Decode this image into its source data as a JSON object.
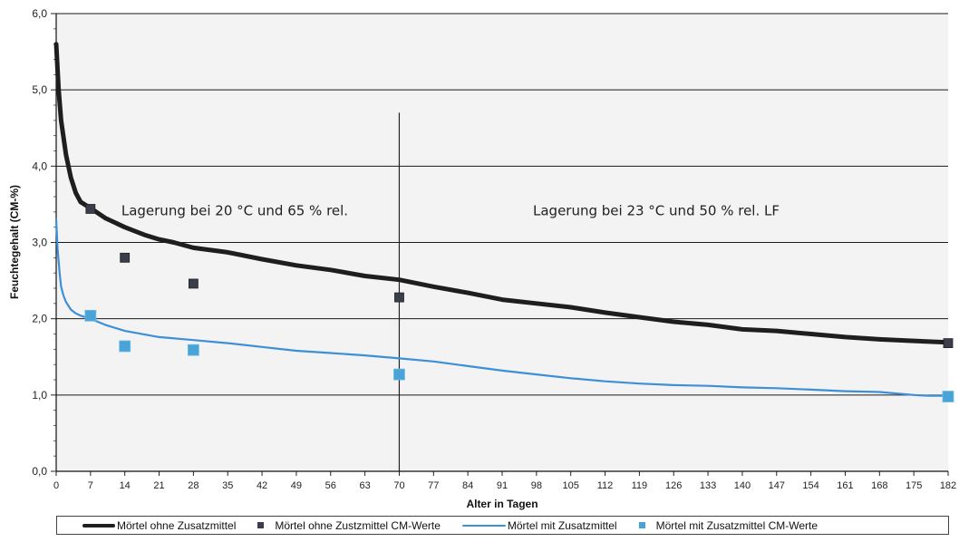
{
  "chart_data": {
    "type": "line",
    "xlabel": "Alter in Tagen",
    "ylabel": "Feuchtegehalt (CM-%)",
    "xlim": [
      0,
      182
    ],
    "ylim": [
      0,
      6
    ],
    "x_ticks": [
      "0",
      "7",
      "14",
      "21",
      "28",
      "35",
      "42",
      "49",
      "56",
      "63",
      "70",
      "77",
      "84",
      "91",
      "98",
      "105",
      "112",
      "119",
      "126",
      "133",
      "140",
      "147",
      "154",
      "161",
      "168",
      "175",
      "182"
    ],
    "y_ticks": [
      "0,0",
      "1,0",
      "2,0",
      "3,0",
      "4,0",
      "5,0",
      "6,0"
    ],
    "grid": "horizontal major gridlines",
    "legend_position": "bottom",
    "series": [
      {
        "name": "Mörtel ohne Zusatzmittel",
        "kind": "line",
        "color": "#1e1e1e",
        "x": [
          0,
          0.5,
          1,
          2,
          3,
          4,
          5,
          7,
          10,
          14,
          18,
          21,
          24,
          28,
          35,
          42,
          49,
          56,
          63,
          70,
          77,
          84,
          91,
          98,
          105,
          112,
          119,
          126,
          133,
          140,
          147,
          154,
          161,
          168,
          175,
          182
        ],
        "y": [
          5.6,
          5.0,
          4.6,
          4.15,
          3.85,
          3.65,
          3.53,
          3.45,
          3.32,
          3.2,
          3.1,
          3.04,
          3.0,
          2.93,
          2.87,
          2.78,
          2.7,
          2.64,
          2.56,
          2.51,
          2.42,
          2.34,
          2.25,
          2.2,
          2.15,
          2.08,
          2.02,
          1.96,
          1.92,
          1.86,
          1.84,
          1.8,
          1.76,
          1.73,
          1.71,
          1.69
        ]
      },
      {
        "name": "Mörtel ohne Zustzmittel CM-Werte",
        "kind": "scatter",
        "color": "#3a3d4a",
        "x": [
          7,
          14,
          28,
          70,
          182
        ],
        "y": [
          3.44,
          2.8,
          2.46,
          2.28,
          1.68
        ]
      },
      {
        "name": "Mörtel mit Zusatzmittel",
        "kind": "line",
        "color": "#3d8fd6",
        "x": [
          0,
          0.3,
          0.7,
          1,
          1.5,
          2,
          3,
          4,
          5,
          7,
          10,
          14,
          21,
          28,
          35,
          42,
          49,
          56,
          63,
          70,
          77,
          84,
          91,
          98,
          105,
          112,
          119,
          126,
          133,
          140,
          147,
          154,
          161,
          168,
          175,
          178,
          182
        ],
        "y": [
          3.3,
          2.9,
          2.6,
          2.42,
          2.3,
          2.22,
          2.12,
          2.07,
          2.04,
          2.0,
          1.92,
          1.84,
          1.76,
          1.72,
          1.68,
          1.63,
          1.58,
          1.55,
          1.52,
          1.48,
          1.44,
          1.38,
          1.32,
          1.27,
          1.22,
          1.18,
          1.15,
          1.13,
          1.12,
          1.1,
          1.09,
          1.07,
          1.05,
          1.04,
          1.0,
          0.99,
          0.99
        ]
      },
      {
        "name": "Mörtel mit Zusatzmittel CM-Werte",
        "kind": "scatter",
        "color": "#4aa3d6",
        "x": [
          7,
          14,
          28,
          70,
          182
        ],
        "y": [
          2.04,
          1.64,
          1.59,
          1.27,
          0.98
        ]
      }
    ],
    "annotations": [
      {
        "text": "Lagerung bei 20 °C und 65 % rel.",
        "x": 7,
        "y": 3.5
      },
      {
        "text": "Lagerung bei 23 °C und 50 % rel. LF",
        "x": 91,
        "y": 3.5
      }
    ],
    "vertical_line_x": 70,
    "vertical_line_top_y": 4.7
  },
  "legend": {
    "item1": "Mörtel ohne Zusatzmittel",
    "item2": "Mörtel ohne Zustzmittel CM-Werte",
    "item3": "Mörtel mit Zusatzmittel",
    "item4": "Mörtel mit Zusatzmittel CM-Werte"
  }
}
